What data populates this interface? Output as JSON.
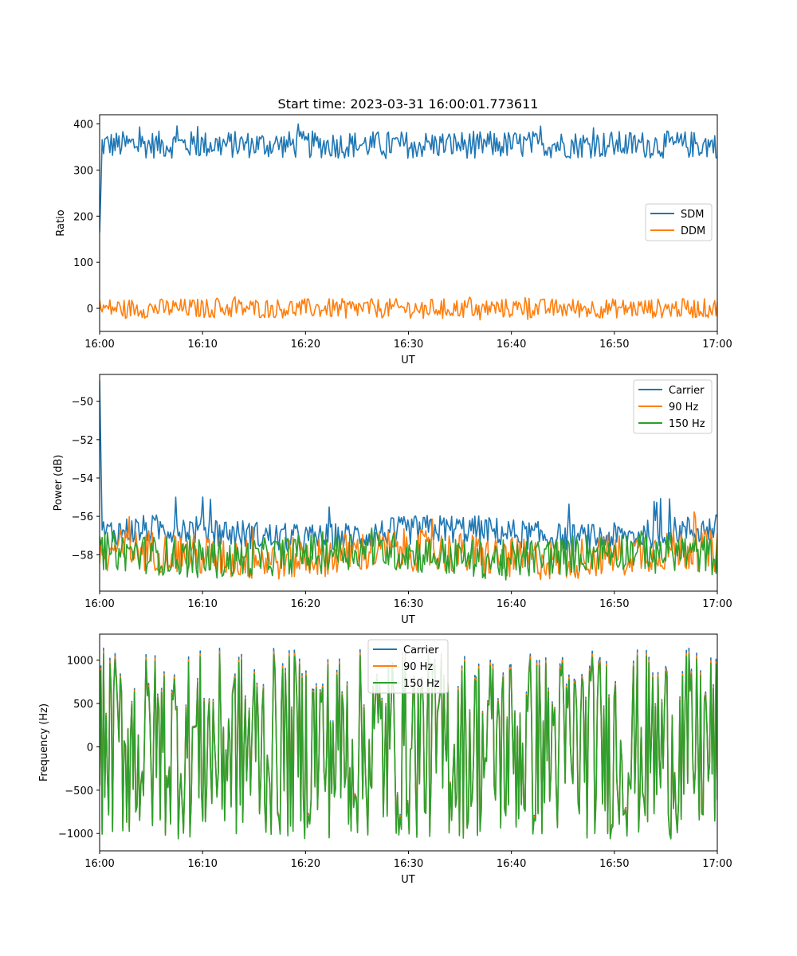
{
  "chart_data": [
    {
      "type": "line",
      "title": "Start time: 2023-03-31 16:00:01.773611",
      "xlabel": "UT",
      "ylabel": "Ratio",
      "xlim": [
        "16:00",
        "17:00"
      ],
      "ylim": [
        -50,
        420
      ],
      "xticks": [
        "16:00",
        "16:10",
        "16:20",
        "16:30",
        "16:40",
        "16:50",
        "17:00"
      ],
      "yticks": [
        0,
        100,
        200,
        300,
        400
      ],
      "grid": false,
      "legend_position": "center-right",
      "series": [
        {
          "name": "SDM",
          "color": "#1f77b4",
          "approx_mean": 355,
          "approx_noise_range": [
            320,
            400
          ],
          "initial_value": 165
        },
        {
          "name": "DDM",
          "color": "#ff7f0e",
          "approx_mean": 0,
          "approx_noise_range": [
            -25,
            25
          ]
        }
      ]
    },
    {
      "type": "line",
      "title": "",
      "xlabel": "UT",
      "ylabel": "Power (dB)",
      "xlim": [
        "16:00",
        "17:00"
      ],
      "ylim": [
        -59.9,
        -48.6
      ],
      "xticks": [
        "16:00",
        "16:10",
        "16:20",
        "16:30",
        "16:40",
        "16:50",
        "17:00"
      ],
      "yticks": [
        -58,
        -56,
        -54,
        -52,
        -50
      ],
      "grid": false,
      "legend_position": "top-right",
      "series": [
        {
          "name": "Carrier",
          "color": "#1f77b4",
          "approx_mean": -56.9,
          "approx_noise_range": [
            -57.8,
            -55.0
          ],
          "initial_value": -48.9
        },
        {
          "name": "90 Hz",
          "color": "#ff7f0e",
          "approx_mean": -58.0,
          "approx_noise_range": [
            -59.3,
            -56.0
          ]
        },
        {
          "name": "150 Hz",
          "color": "#2ca02c",
          "approx_mean": -58.0,
          "approx_noise_range": [
            -59.2,
            -56.7
          ]
        }
      ]
    },
    {
      "type": "line",
      "title": "",
      "xlabel": "UT",
      "ylabel": "Frequency (Hz)",
      "xlim": [
        "16:00",
        "17:00"
      ],
      "ylim": [
        -1200,
        1300
      ],
      "xticks": [
        "16:00",
        "16:10",
        "16:20",
        "16:30",
        "16:40",
        "16:50",
        "17:00"
      ],
      "yticks": [
        -1000,
        -500,
        0,
        500,
        1000
      ],
      "grid": false,
      "legend_position": "top-center",
      "series": [
        {
          "name": "Carrier",
          "color": "#1f77b4",
          "approx_mean": 0,
          "approx_noise_range": [
            -1080,
            1200
          ]
        },
        {
          "name": "90 Hz",
          "color": "#ff7f0e",
          "approx_mean": 0,
          "approx_noise_range": [
            -1060,
            1200
          ]
        },
        {
          "name": "150 Hz",
          "color": "#2ca02c",
          "approx_mean": 0,
          "approx_noise_range": [
            -1050,
            1200
          ]
        }
      ]
    }
  ]
}
